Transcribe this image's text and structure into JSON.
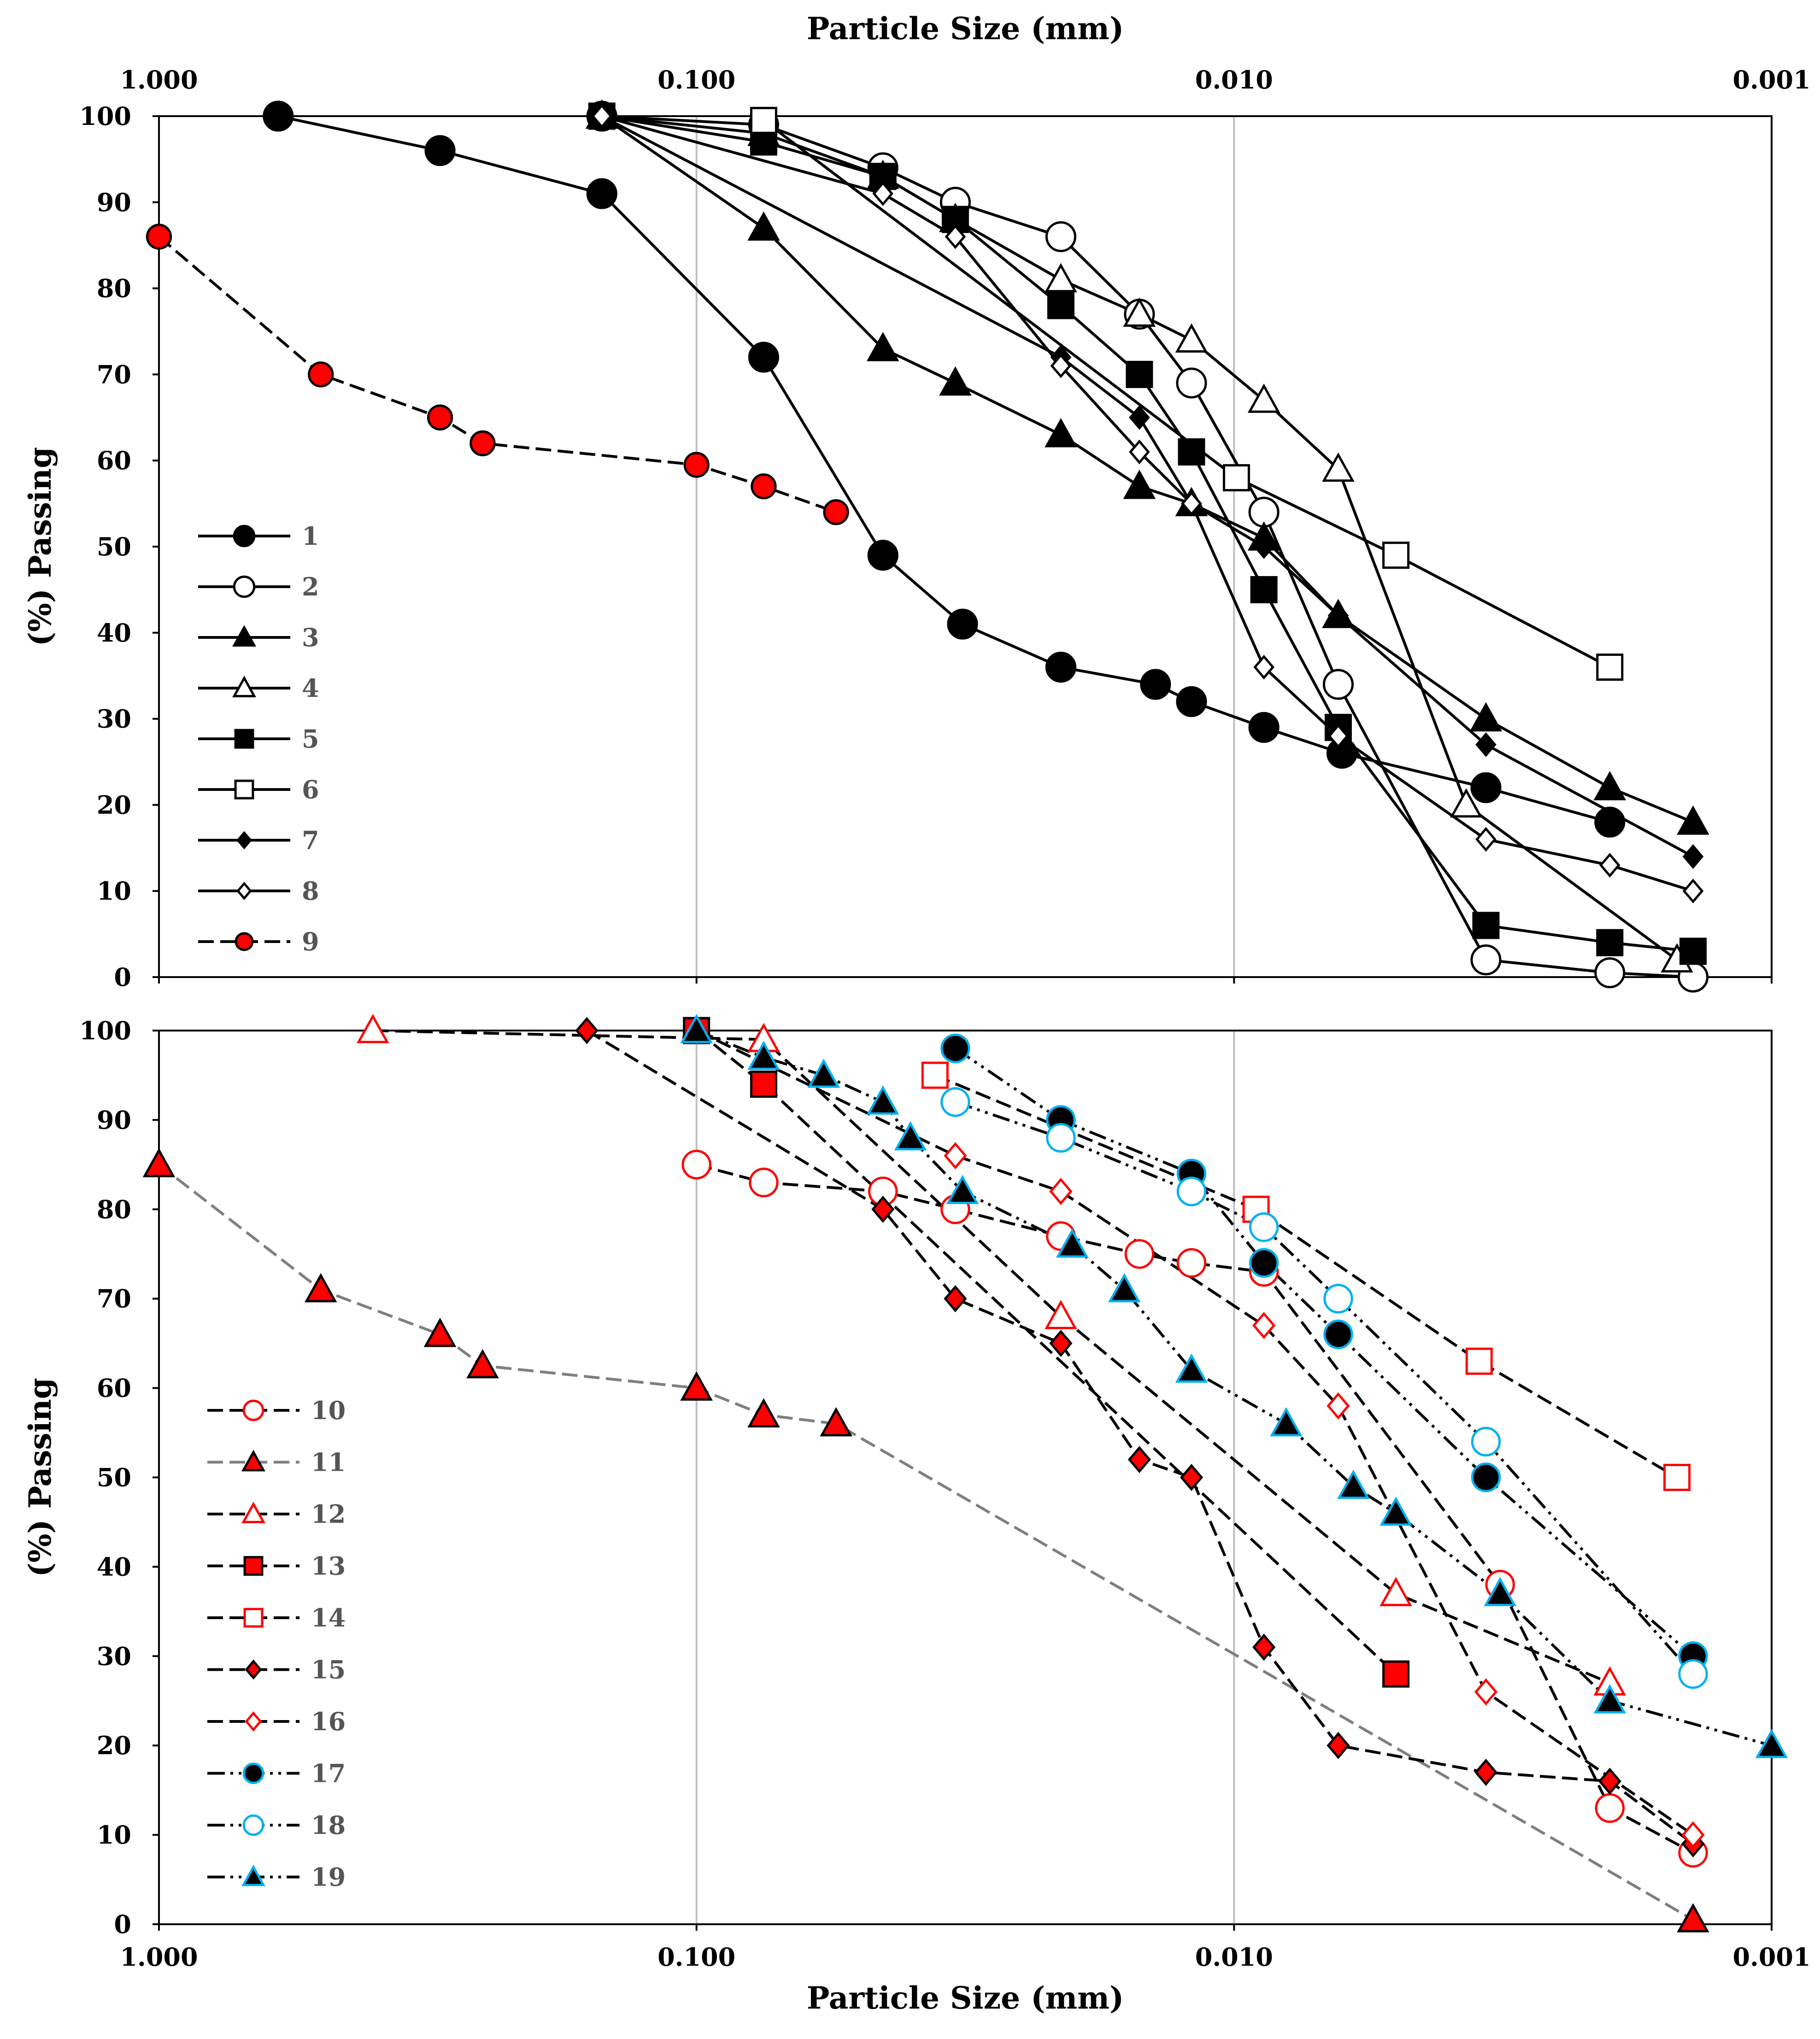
{
  "colors": {
    "black": "#000000",
    "red": "#ff0000",
    "blue": "#00b0f0",
    "gray": "#7f7f7f",
    "white": "#ffffff",
    "grid": "#bfbfbf"
  },
  "chart_data": [
    {
      "type": "line",
      "id": "top",
      "x_scale": "log",
      "x_reversed": true,
      "xlabel": "Particle Size (mm)",
      "xlabel_position": "top",
      "ylabel": "(%) Passing",
      "xlim": [
        1.0,
        0.001
      ],
      "ylim": [
        0,
        100
      ],
      "x_ticks": [
        "1.000",
        "0.100",
        "0.010",
        "0.001"
      ],
      "y_ticks": [
        "0",
        "10",
        "20",
        "30",
        "40",
        "50",
        "60",
        "70",
        "80",
        "90",
        "100"
      ],
      "grid": "vertical",
      "legend_position": "left",
      "series": [
        {
          "name": "1",
          "marker": "circle",
          "fill": "black",
          "stroke": "black",
          "line": "solid",
          "line_color": "black",
          "size": 1.15,
          "x": [
            0.6,
            0.3,
            0.15,
            0.075,
            0.045,
            0.032,
            0.021,
            0.014,
            0.012,
            0.0088,
            0.0063,
            0.0034,
            0.002
          ],
          "y": [
            100,
            96,
            91,
            72,
            49,
            41,
            36,
            34,
            32,
            29,
            26,
            22,
            18
          ]
        },
        {
          "name": "2",
          "marker": "circle",
          "fill": "white",
          "stroke": "black",
          "line": "solid",
          "line_color": "black",
          "size": 1.15,
          "x": [
            0.15,
            0.075,
            0.045,
            0.033,
            0.021,
            0.015,
            0.012,
            0.0088,
            0.0064,
            0.0034,
            0.002,
            0.0014
          ],
          "y": [
            100,
            99,
            94,
            90,
            86,
            77,
            69,
            54,
            34,
            2,
            0.5,
            0
          ]
        },
        {
          "name": "3",
          "marker": "triangle",
          "fill": "black",
          "stroke": "black",
          "line": "solid",
          "line_color": "black",
          "size": 1.0,
          "x": [
            0.15,
            0.075,
            0.045,
            0.033,
            0.021,
            0.015,
            0.012,
            0.0088,
            0.0064,
            0.0034,
            0.002,
            0.0014
          ],
          "y": [
            100,
            87,
            73,
            69,
            63,
            57,
            55,
            51,
            42,
            30,
            22,
            18
          ]
        },
        {
          "name": "4",
          "marker": "triangle",
          "fill": "white",
          "stroke": "black",
          "line": "solid",
          "line_color": "black",
          "size": 1.0,
          "x": [
            0.15,
            0.075,
            0.045,
            0.033,
            0.021,
            0.015,
            0.012,
            0.0088,
            0.0064,
            0.0037,
            0.0015
          ],
          "y": [
            100,
            98,
            93,
            88,
            81,
            77,
            74,
            67,
            59,
            20,
            2
          ]
        },
        {
          "name": "5",
          "marker": "square",
          "fill": "black",
          "stroke": "black",
          "line": "solid",
          "line_color": "black",
          "size": 1.0,
          "x": [
            0.15,
            0.075,
            0.045,
            0.033,
            0.021,
            0.015,
            0.012,
            0.0088,
            0.0064,
            0.0034,
            0.002,
            0.0014
          ],
          "y": [
            100,
            97,
            93,
            88,
            78,
            70,
            61,
            45,
            29,
            6,
            4,
            3
          ]
        },
        {
          "name": "6",
          "marker": "square",
          "fill": "white",
          "stroke": "black",
          "line": "solid",
          "line_color": "black",
          "size": 1.0,
          "x": [
            0.075,
            0.0099,
            0.005,
            0.002
          ],
          "y": [
            99.5,
            58,
            49,
            36
          ]
        },
        {
          "name": "7",
          "marker": "diamond",
          "fill": "black",
          "stroke": "black",
          "line": "solid",
          "line_color": "black",
          "size": 0.85,
          "x": [
            0.15,
            0.021,
            0.015,
            0.012,
            0.0088,
            0.0064,
            0.0034,
            0.0014
          ],
          "y": [
            100,
            72,
            65,
            55,
            50,
            42,
            27,
            14
          ]
        },
        {
          "name": "8",
          "marker": "diamond",
          "fill": "white",
          "stroke": "black",
          "line": "solid",
          "line_color": "black",
          "size": 0.85,
          "x": [
            0.15,
            0.045,
            0.033,
            0.021,
            0.015,
            0.012,
            0.0088,
            0.0064,
            0.0034,
            0.002,
            0.0014
          ],
          "y": [
            100,
            91,
            86,
            71,
            61,
            55,
            36,
            28,
            16,
            13,
            10
          ]
        },
        {
          "name": "9",
          "marker": "circle",
          "fill": "red",
          "stroke": "black",
          "line": "dashed",
          "line_color": "black",
          "size": 0.95,
          "x": [
            1.0,
            0.5,
            0.3,
            0.25,
            0.1,
            0.075,
            0.055
          ],
          "y": [
            86,
            70,
            65,
            62,
            59.5,
            57,
            54
          ]
        }
      ]
    },
    {
      "type": "line",
      "id": "bottom",
      "x_scale": "log",
      "x_reversed": true,
      "xlabel": "Particle Size (mm)",
      "xlabel_position": "bottom",
      "ylabel": "(%) Passing",
      "xlim": [
        1.0,
        0.001
      ],
      "ylim": [
        0,
        100
      ],
      "x_ticks": [
        "1.000",
        "0.100",
        "0.010",
        "0.001"
      ],
      "y_ticks": [
        "0",
        "10",
        "20",
        "30",
        "40",
        "50",
        "60",
        "70",
        "80",
        "90",
        "100"
      ],
      "grid": "vertical",
      "legend_position": "left",
      "series": [
        {
          "name": "10",
          "marker": "circle",
          "fill": "white",
          "stroke": "red",
          "line": "dashed",
          "line_color": "black",
          "size": 1.1,
          "x": [
            0.1,
            0.075,
            0.045,
            0.033,
            0.021,
            0.015,
            0.012,
            0.0088,
            0.0032,
            0.002,
            0.0014
          ],
          "y": [
            85,
            83,
            82,
            80,
            77,
            75,
            74,
            73,
            38,
            13,
            8
          ]
        },
        {
          "name": "11",
          "marker": "triangle",
          "fill": "red",
          "stroke": "black",
          "line": "dashed",
          "line_color": "gray",
          "size": 1.0,
          "x": [
            1.0,
            0.5,
            0.3,
            0.25,
            0.1,
            0.075,
            0.055,
            0.0014
          ],
          "y": [
            85,
            71,
            66,
            62.5,
            60,
            57,
            56,
            0.5
          ]
        },
        {
          "name": "12",
          "marker": "triangle",
          "fill": "white",
          "stroke": "red",
          "line": "dashed",
          "line_color": "black",
          "size": 1.0,
          "x": [
            0.4,
            0.075,
            0.021,
            0.005,
            0.002
          ],
          "y": [
            100,
            99,
            68,
            37,
            27
          ]
        },
        {
          "name": "13",
          "marker": "square",
          "fill": "red",
          "stroke": "black",
          "line": "dashed",
          "line_color": "black",
          "size": 1.0,
          "x": [
            0.1,
            0.075,
            0.005
          ],
          "y": [
            100,
            94,
            28
          ]
        },
        {
          "name": "14",
          "marker": "square",
          "fill": "white",
          "stroke": "red",
          "line": "dashed",
          "line_color": "black",
          "size": 1.0,
          "x": [
            0.036,
            0.0091,
            0.0035,
            0.0015
          ],
          "y": [
            95,
            80,
            63,
            50
          ]
        },
        {
          "name": "15",
          "marker": "diamond",
          "fill": "red",
          "stroke": "black",
          "line": "dashed",
          "line_color": "black",
          "size": 0.95,
          "x": [
            0.16,
            0.045,
            0.033,
            0.021,
            0.015,
            0.012,
            0.0088,
            0.0064,
            0.0034,
            0.002,
            0.0014
          ],
          "y": [
            100,
            80,
            70,
            65,
            52,
            50,
            31,
            20,
            17,
            16,
            9
          ]
        },
        {
          "name": "16",
          "marker": "diamond",
          "fill": "white",
          "stroke": "red",
          "line": "dashed",
          "line_color": "black",
          "size": 0.95,
          "x": [
            0.1,
            0.033,
            0.021,
            0.0088,
            0.0064,
            0.0034,
            0.0014
          ],
          "y": [
            100,
            86,
            82,
            67,
            58,
            26,
            10
          ]
        },
        {
          "name": "17",
          "marker": "circle",
          "fill": "black",
          "stroke": "blue",
          "line": "dashdot",
          "line_color": "black",
          "size": 1.1,
          "x": [
            0.033,
            0.021,
            0.012,
            0.0088,
            0.0064,
            0.0034,
            0.0014
          ],
          "y": [
            98,
            90,
            84,
            74,
            66,
            50,
            30
          ]
        },
        {
          "name": "18",
          "marker": "circle",
          "fill": "white",
          "stroke": "blue",
          "line": "dashdot",
          "line_color": "black",
          "size": 1.1,
          "x": [
            0.033,
            0.021,
            0.012,
            0.0088,
            0.0064,
            0.0034,
            0.0014
          ],
          "y": [
            92,
            88,
            82,
            78,
            70,
            54,
            28
          ]
        },
        {
          "name": "19",
          "marker": "triangle",
          "fill": "black",
          "stroke": "blue",
          "line": "dashdot",
          "line_color": "black",
          "size": 1.0,
          "x": [
            0.1,
            0.075,
            0.058,
            0.045,
            0.04,
            0.032,
            0.02,
            0.016,
            0.012,
            0.008,
            0.006,
            0.005,
            0.0032,
            0.002,
            0.001
          ],
          "y": [
            100,
            97,
            95,
            92,
            88,
            82,
            76,
            71,
            62,
            56,
            49,
            46,
            37,
            25,
            20
          ]
        }
      ]
    }
  ]
}
